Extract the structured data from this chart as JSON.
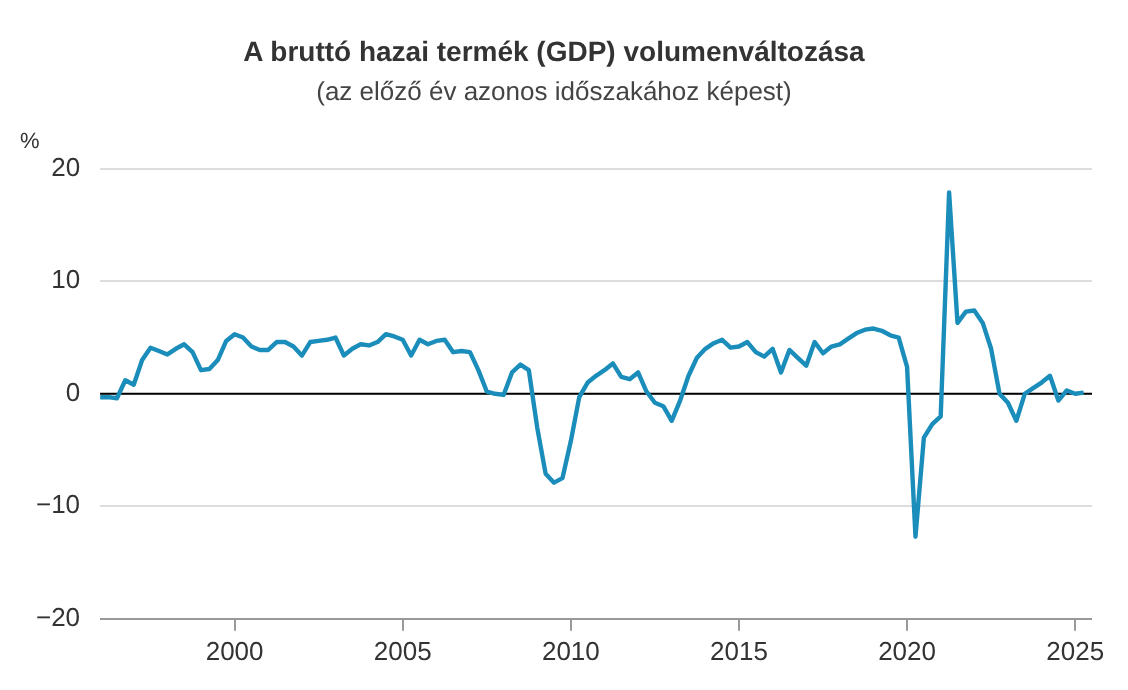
{
  "chart_data": {
    "type": "line",
    "title": "A bruttó hazai termék (GDP) volumenváltozása",
    "subtitle": "(az előző év azonos időszakához képest)",
    "ylabel": "%",
    "x": [
      1996,
      1996.25,
      1996.5,
      1996.75,
      1997,
      1997.25,
      1997.5,
      1997.75,
      1998,
      1998.25,
      1998.5,
      1998.75,
      1999,
      1999.25,
      1999.5,
      1999.75,
      2000,
      2000.25,
      2000.5,
      2000.75,
      2001,
      2001.25,
      2001.5,
      2001.75,
      2002,
      2002.25,
      2002.5,
      2002.75,
      2003,
      2003.25,
      2003.5,
      2003.75,
      2004,
      2004.25,
      2004.5,
      2004.75,
      2005,
      2005.25,
      2005.5,
      2005.75,
      2006,
      2006.25,
      2006.5,
      2006.75,
      2007,
      2007.25,
      2007.5,
      2007.75,
      2008,
      2008.25,
      2008.5,
      2008.75,
      2009,
      2009.25,
      2009.5,
      2009.75,
      2010,
      2010.25,
      2010.5,
      2010.75,
      2011,
      2011.25,
      2011.5,
      2011.75,
      2012,
      2012.25,
      2012.5,
      2012.75,
      2013,
      2013.25,
      2013.5,
      2013.75,
      2014,
      2014.25,
      2014.5,
      2014.75,
      2015,
      2015.25,
      2015.5,
      2015.75,
      2016,
      2016.25,
      2016.5,
      2016.75,
      2017,
      2017.25,
      2017.5,
      2017.75,
      2018,
      2018.25,
      2018.5,
      2018.75,
      2019,
      2019.25,
      2019.5,
      2019.75,
      2020,
      2020.25,
      2020.5,
      2020.75,
      2021,
      2021.25,
      2021.5,
      2021.75,
      2022,
      2022.25,
      2022.5,
      2022.75,
      2023,
      2023.25,
      2023.5,
      2023.75,
      2024,
      2024.25,
      2024.5,
      2024.75,
      2025,
      2025.25
    ],
    "series": [
      {
        "color": "#1b8dbb",
        "values": [
          -0.3,
          -0.3,
          -0.4,
          1.2,
          0.8,
          3.0,
          4.1,
          3.8,
          3.5,
          4.0,
          4.4,
          3.7,
          2.1,
          2.2,
          3.0,
          4.7,
          5.3,
          5.0,
          4.2,
          3.9,
          3.9,
          4.6,
          4.6,
          4.2,
          3.4,
          4.6,
          4.7,
          4.8,
          5.0,
          3.4,
          4.0,
          4.4,
          4.3,
          4.6,
          5.3,
          5.1,
          4.8,
          3.4,
          4.8,
          4.4,
          4.7,
          4.8,
          3.7,
          3.8,
          3.7,
          2.1,
          0.2,
          0.0,
          -0.1,
          1.9,
          2.6,
          2.1,
          -3.0,
          -7.1,
          -7.9,
          -7.5,
          -4.2,
          -0.3,
          1.0,
          1.6,
          2.1,
          2.7,
          1.5,
          1.3,
          1.9,
          0.2,
          -0.8,
          -1.1,
          -2.4,
          -0.6,
          1.6,
          3.2,
          4.0,
          4.5,
          4.8,
          4.1,
          4.2,
          4.6,
          3.7,
          3.3,
          4.0,
          1.9,
          3.9,
          3.2,
          2.5,
          4.6,
          3.6,
          4.2,
          4.4,
          4.9,
          5.4,
          5.7,
          5.8,
          5.6,
          5.2,
          5.0,
          2.4,
          -12.7,
          -3.9,
          -2.7,
          -2.0,
          17.9,
          6.3,
          7.3,
          7.4,
          6.3,
          4.0,
          0.0,
          -0.8,
          -2.4,
          0.0,
          0.5,
          1.0,
          1.6,
          -0.6,
          0.3,
          0.0,
          0.1
        ]
      }
    ],
    "xlim": [
      1996,
      2025.5
    ],
    "xticks": [
      2000,
      2005,
      2010,
      2015,
      2020,
      2025
    ],
    "ylim": [
      -20,
      20
    ],
    "yticks": [
      -20,
      -10,
      0,
      10,
      20
    ],
    "ref_lines": [
      {
        "axis": "y",
        "value": 0,
        "color": "#000000"
      }
    ],
    "grid": "y",
    "legend": false,
    "marker": "none",
    "line_style": "solid"
  }
}
